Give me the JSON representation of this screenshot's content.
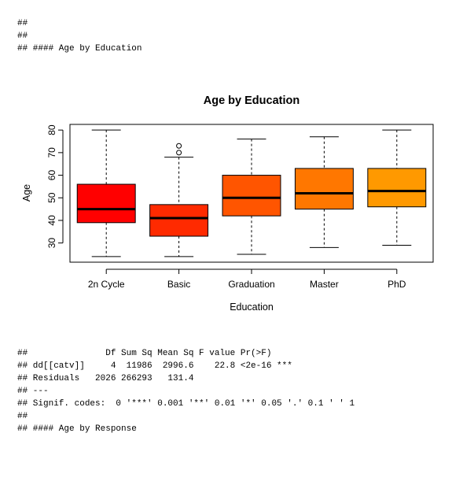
{
  "output_top": {
    "lines": [
      "##",
      "##",
      "## #### Age by Education"
    ]
  },
  "output_bottom": {
    "lines": [
      "##               Df Sum Sq Mean Sq F value Pr(>F)",
      "## dd[[catv]]     4  11986  2996.6    22.8 <2e-16 ***",
      "## Residuals   2026 266293   131.4",
      "## ---",
      "## Signif. codes:  0 '***' 0.001 '**' 0.01 '*' 0.05 '.' 0.1 ' ' 1",
      "##",
      "## #### Age by Response"
    ]
  },
  "chart_data": {
    "type": "boxplot",
    "title": "Age by Education",
    "xlabel": "Education",
    "ylabel": "Age",
    "ylim": [
      21.5,
      82.5
    ],
    "yticks": [
      30,
      40,
      50,
      60,
      70,
      80
    ],
    "grid": false,
    "categories": [
      "2n Cycle",
      "Basic",
      "Graduation",
      "Master",
      "PhD"
    ],
    "boxes": [
      {
        "category": "2n Cycle",
        "whisker_low": 24,
        "q1": 39,
        "median": 45,
        "q3": 56,
        "whisker_high": 80,
        "outliers": [],
        "color": "#FF0000"
      },
      {
        "category": "Basic",
        "whisker_low": 24,
        "q1": 33,
        "median": 41,
        "q3": 47,
        "whisker_high": 68,
        "outliers": [
          70,
          73
        ],
        "color": "#FF2A00"
      },
      {
        "category": "Graduation",
        "whisker_low": 25,
        "q1": 42,
        "median": 50,
        "q3": 60,
        "whisker_high": 76,
        "outliers": [],
        "color": "#FF5500"
      },
      {
        "category": "Master",
        "whisker_low": 28,
        "q1": 45,
        "median": 52,
        "q3": 63,
        "whisker_high": 77,
        "outliers": [],
        "color": "#FF7700"
      },
      {
        "category": "PhD",
        "whisker_low": 29,
        "q1": 46,
        "median": 53,
        "q3": 63,
        "whisker_high": 80,
        "outliers": [],
        "color": "#FF9900"
      }
    ]
  }
}
